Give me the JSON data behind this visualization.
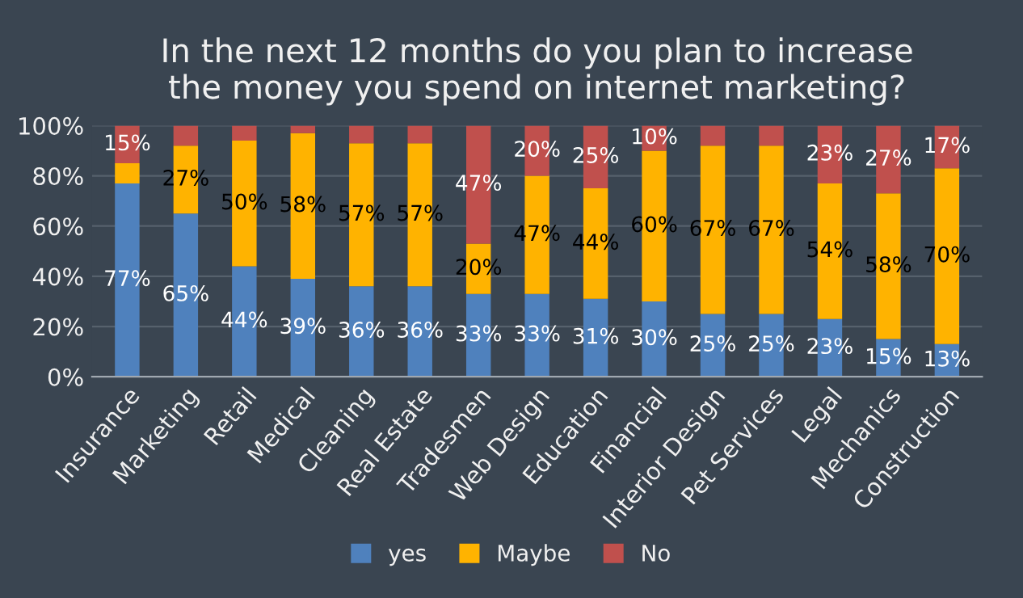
{
  "chart_data": {
    "type": "bar",
    "title": "In the next 12 months do you plan to increase\nthe money you spend on internet marketing?",
    "categories": [
      "Insurance",
      "Marketing",
      "Retail",
      "Medical",
      "Cleaning",
      "Real Estate",
      "Tradesmen",
      "Web Design",
      "Education",
      "Financial",
      "Interior Design",
      "Pet Services",
      "Legal",
      "Mechanics",
      "Construction"
    ],
    "stacked": true,
    "series": [
      {
        "name": "yes",
        "color": "#4f81bd",
        "values": [
          77,
          65,
          44,
          39,
          36,
          36,
          33,
          33,
          31,
          30,
          25,
          25,
          23,
          15,
          13
        ],
        "value_labels": [
          "77%",
          "65%",
          "44%",
          "39%",
          "36%",
          "36%",
          "33%",
          "33%",
          "31%",
          "30%",
          "25%",
          "25%",
          "23%",
          "15%",
          "13%"
        ]
      },
      {
        "name": "Maybe",
        "color": "#ffb300",
        "values": [
          8,
          27,
          50,
          58,
          57,
          57,
          20,
          47,
          44,
          60,
          67,
          67,
          54,
          58,
          70
        ],
        "value_labels": [
          null,
          "27%",
          "50%",
          "58%",
          "57%",
          "57%",
          "20%",
          "47%",
          "44%",
          "60%",
          "67%",
          "67%",
          "54%",
          "58%",
          "70%"
        ]
      },
      {
        "name": "No",
        "color": "#c0504d",
        "values": [
          15,
          8,
          6,
          3,
          7,
          7,
          47,
          20,
          25,
          10,
          8,
          8,
          23,
          27,
          17
        ],
        "value_labels": [
          "15%",
          null,
          null,
          null,
          null,
          null,
          "47%",
          "20%",
          "25%",
          "10%",
          null,
          null,
          "23%",
          "27%",
          "17%"
        ]
      }
    ],
    "ylim": [
      0,
      100
    ],
    "yticks": [
      {
        "value": 0,
        "label": "0%"
      },
      {
        "value": 20,
        "label": "20%"
      },
      {
        "value": 40,
        "label": "40%"
      },
      {
        "value": 60,
        "label": "60%"
      },
      {
        "value": 80,
        "label": "80%"
      },
      {
        "value": 100,
        "label": "100%"
      }
    ],
    "grid": "y",
    "legend": "bottom"
  }
}
